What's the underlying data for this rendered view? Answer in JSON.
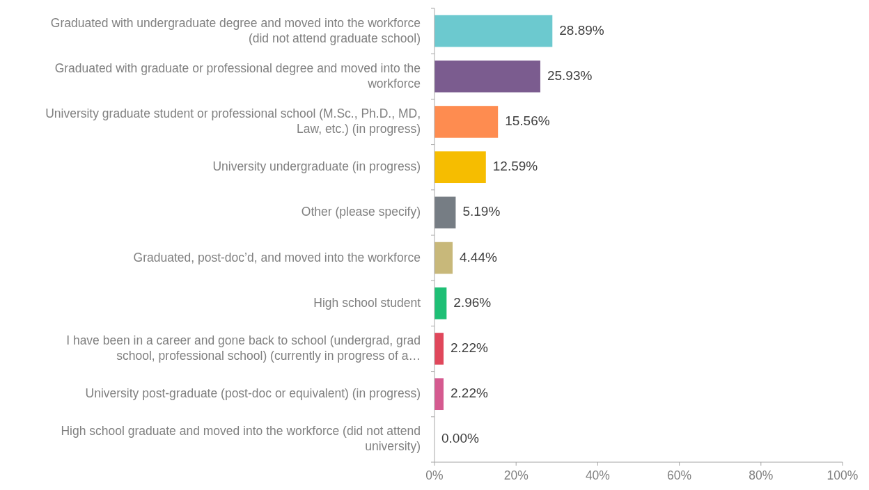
{
  "chart_data": {
    "type": "bar",
    "orientation": "horizontal",
    "categories": [
      "Graduated with undergraduate degree and moved into the workforce (did not attend graduate school)",
      "Graduated with graduate or professional degree and moved into the workforce",
      "University graduate student or professional school (M.Sc., Ph.D., MD, Law, etc.) (in progress)",
      "University undergraduate (in progress)",
      "Other (please specify)",
      "Graduated, post-doc’d, and moved into the workforce",
      "High school student",
      "I have been in a career and gone back to school (undergrad, grad school, professional school) (currently in progress of a…",
      "University post-graduate (post-doc or equivalent) (in progress)",
      "High school graduate and moved into the workforce (did not attend university)"
    ],
    "values": [
      28.89,
      25.93,
      15.56,
      12.59,
      5.19,
      4.44,
      2.96,
      2.22,
      2.22,
      0
    ],
    "value_labels": [
      "28.89%",
      "25.93%",
      "15.56%",
      "12.59%",
      "5.19%",
      "4.44%",
      "2.96%",
      "2.22%",
      "2.22%",
      "0.00%"
    ],
    "colors": [
      "#6cc9cf",
      "#7b5c8f",
      "#fe8c50",
      "#f6bd00",
      "#767d84",
      "#c8b87a",
      "#1ebf75",
      "#e0475b",
      "#d55a90",
      "#a0a0a0"
    ],
    "xlim": [
      0,
      100
    ],
    "xticks": [
      {
        "value": 0,
        "label": "0%"
      },
      {
        "value": 20,
        "label": "20%"
      },
      {
        "value": 40,
        "label": "40%"
      },
      {
        "value": 60,
        "label": "60%"
      },
      {
        "value": 80,
        "label": "80%"
      },
      {
        "value": 100,
        "label": "100%"
      }
    ],
    "grid": false
  }
}
